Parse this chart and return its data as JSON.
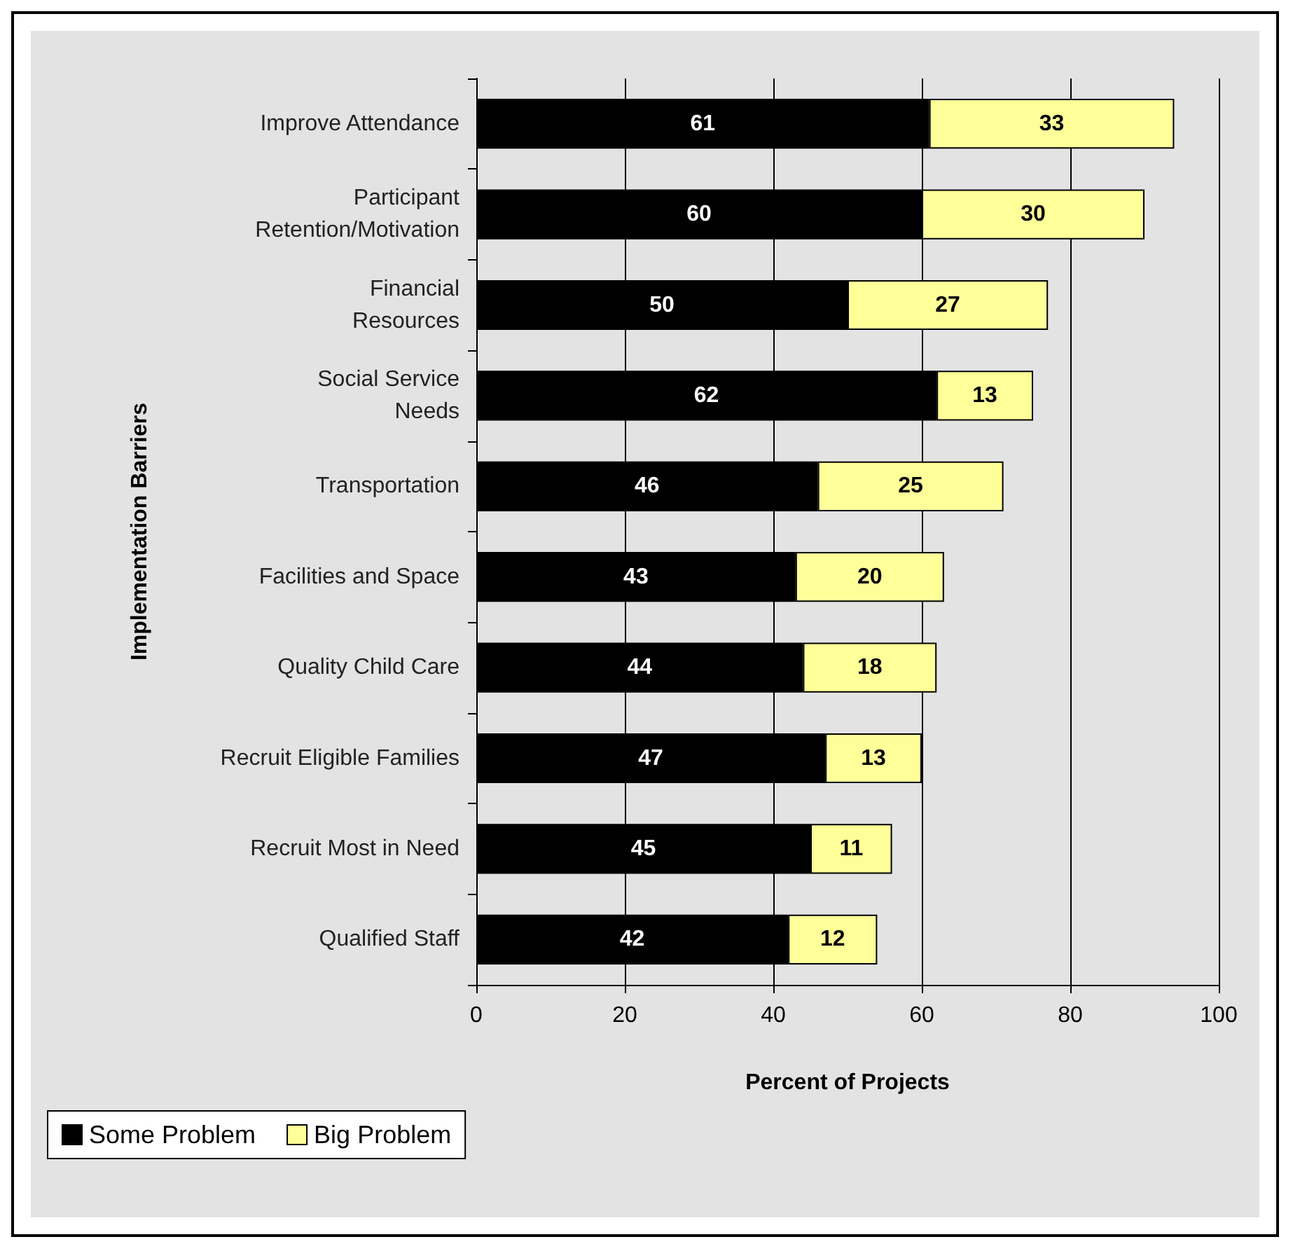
{
  "chart_data": {
    "type": "bar",
    "orientation": "horizontal",
    "stacked": true,
    "xlabel": "Percent of Projects",
    "ylabel": "Implementation Barriers",
    "categories": [
      "Improve Attendance",
      "Participant\nRetention/Motivation",
      "Financial\nResources",
      "Social Service\nNeeds",
      "Transportation",
      "Facilities and Space",
      "Quality Child Care",
      "Recruit Eligible Families",
      "Recruit Most in Need",
      "Qualified Staff"
    ],
    "series": [
      {
        "name": "Some Problem",
        "color": "#000000",
        "values": [
          61,
          60,
          50,
          62,
          46,
          43,
          44,
          47,
          45,
          42
        ]
      },
      {
        "name": "Big Problem",
        "color": "#ffff99",
        "values": [
          33,
          30,
          27,
          13,
          25,
          20,
          18,
          13,
          11,
          12
        ]
      }
    ],
    "xlim": [
      0,
      100
    ],
    "xticks": [
      0,
      20,
      40,
      60,
      80,
      100
    ],
    "grid": "x",
    "legend": "bottom left",
    "data_labels": true
  }
}
